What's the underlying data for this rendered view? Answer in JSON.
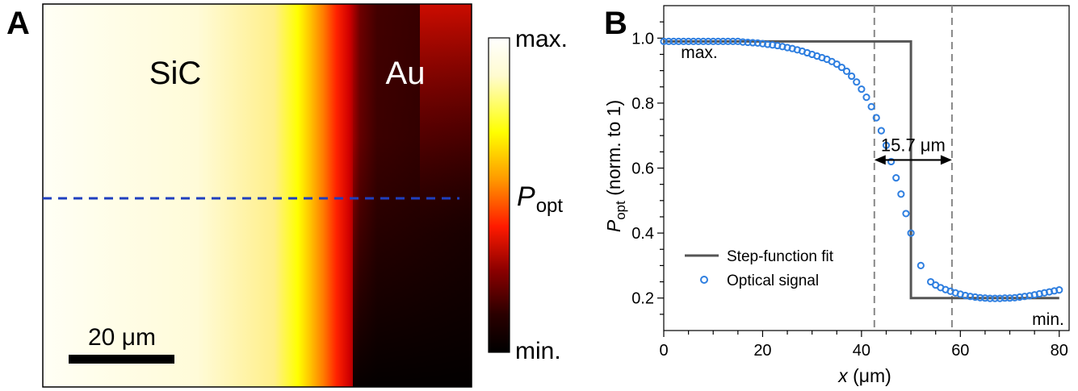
{
  "panel_a": {
    "label": "A",
    "material_left": "SiC",
    "material_right": "Au",
    "scale_bar": "20 μm",
    "colorbar_max": "max.",
    "colorbar_min": "min.",
    "colorbar_label": "P",
    "colorbar_label_sub": "opt",
    "colormap": [
      "#ffffff",
      "#fffbd0",
      "#ffff00",
      "#ff9900",
      "#ff1a00",
      "#8b0000",
      "#2a0000",
      "#000000"
    ],
    "linecut_color": "#1f3fbf"
  },
  "panel_b": {
    "label": "B",
    "annot_max": "max.",
    "annot_min": "min.",
    "width_label": "15.7 μm",
    "colors": {
      "step": "#555555",
      "points": "#2f7fe0",
      "dashed": "#888888"
    }
  },
  "chart_data": {
    "type": "line",
    "xlabel_italic": "x",
    "xlabel_rest": " (μm)",
    "ylabel_main": "P",
    "ylabel_sub": "opt",
    "ylabel_rest": " (norm. to 1)",
    "xlim": [
      0,
      82
    ],
    "ylim": [
      0.1,
      1.1
    ],
    "xticks": [
      "0",
      "20",
      "40",
      "60",
      "80"
    ],
    "yticks": [
      "0.2",
      "0.4",
      "0.6",
      "0.8",
      "1.0"
    ],
    "legend_position": "lower-left",
    "vlines": [
      42.6,
      58.3
    ],
    "series": [
      {
        "name": "Step-function fit",
        "style": "line",
        "x": [
          0,
          50,
          50,
          80
        ],
        "y": [
          0.99,
          0.99,
          0.2,
          0.2
        ]
      },
      {
        "name": "Optical signal",
        "style": "markers",
        "x": [
          0,
          1,
          2,
          3,
          4,
          5,
          6,
          7,
          8,
          9,
          10,
          11,
          12,
          13,
          14,
          15,
          16,
          17,
          18,
          19,
          20,
          21,
          22,
          23,
          24,
          25,
          26,
          27,
          28,
          29,
          30,
          31,
          32,
          33,
          34,
          35,
          36,
          37,
          38,
          39,
          40,
          41,
          42,
          43,
          44,
          45,
          46,
          47,
          48,
          49,
          50,
          52,
          54,
          55,
          56,
          57,
          58,
          59,
          60,
          61,
          62,
          63,
          64,
          65,
          66,
          67,
          68,
          69,
          70,
          71,
          72,
          73,
          74,
          75,
          76,
          77,
          78,
          79,
          80
        ],
        "y": [
          0.99,
          0.99,
          0.99,
          0.99,
          0.99,
          0.99,
          0.99,
          0.99,
          0.99,
          0.99,
          0.99,
          0.99,
          0.99,
          0.99,
          0.99,
          0.99,
          0.988,
          0.987,
          0.986,
          0.985,
          0.983,
          0.981,
          0.979,
          0.977,
          0.974,
          0.971,
          0.968,
          0.964,
          0.96,
          0.955,
          0.95,
          0.945,
          0.94,
          0.935,
          0.928,
          0.92,
          0.91,
          0.898,
          0.883,
          0.865,
          0.843,
          0.818,
          0.789,
          0.755,
          0.715,
          0.67,
          0.62,
          0.57,
          0.52,
          0.46,
          0.4,
          0.3,
          0.25,
          0.24,
          0.232,
          0.226,
          0.221,
          0.216,
          0.212,
          0.208,
          0.205,
          0.203,
          0.201,
          0.2,
          0.199,
          0.199,
          0.199,
          0.2,
          0.2,
          0.201,
          0.203,
          0.205,
          0.207,
          0.21,
          0.213,
          0.216,
          0.219,
          0.222,
          0.225
        ]
      }
    ]
  }
}
